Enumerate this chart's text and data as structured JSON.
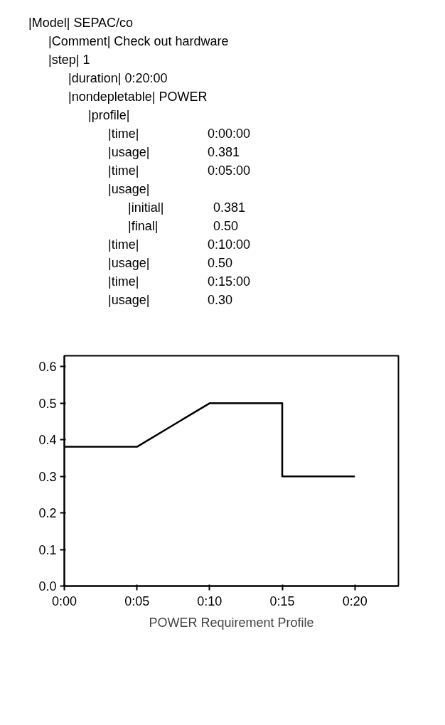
{
  "chart_data": {
    "type": "line",
    "title": "POWER Requirement Profile",
    "annotations": [
      "|Model| SEPAC/co",
      "|Comment| Check out hardware",
      "|step| 1",
      "|duration| 0:20:00",
      "|nondepletable| POWER",
      "|profile|",
      "|time| 0:00:00",
      "|usage| 0.381",
      "|time| 0:05:00",
      "|usage|",
      "|initial| 0.381",
      "|final| 0.50",
      "|time| 0:10:00",
      "|usage| 0.50",
      "|time| 0:15:00",
      "|usage| 0.30"
    ],
    "series": [
      {
        "color": "#000000",
        "x": [
          0,
          5,
          10,
          15,
          15,
          20
        ],
        "values": [
          0.381,
          0.381,
          0.5,
          0.5,
          0.3,
          0.3
        ]
      }
    ],
    "xlim": [
      0,
      23
    ],
    "xticks": [
      {
        "value": 0,
        "label": "0:00"
      },
      {
        "value": 5,
        "label": "0:05"
      },
      {
        "value": 10,
        "label": "0:10"
      },
      {
        "value": 15,
        "label": "0:15"
      },
      {
        "value": 20,
        "label": "0:20"
      }
    ],
    "ylim": [
      0,
      0.63
    ],
    "yticks": [
      {
        "value": 0,
        "label": "0.0"
      },
      0.1,
      0.2,
      0.3,
      0.4,
      0.5,
      0.6
    ],
    "marker": "none",
    "line_style": "solid"
  }
}
